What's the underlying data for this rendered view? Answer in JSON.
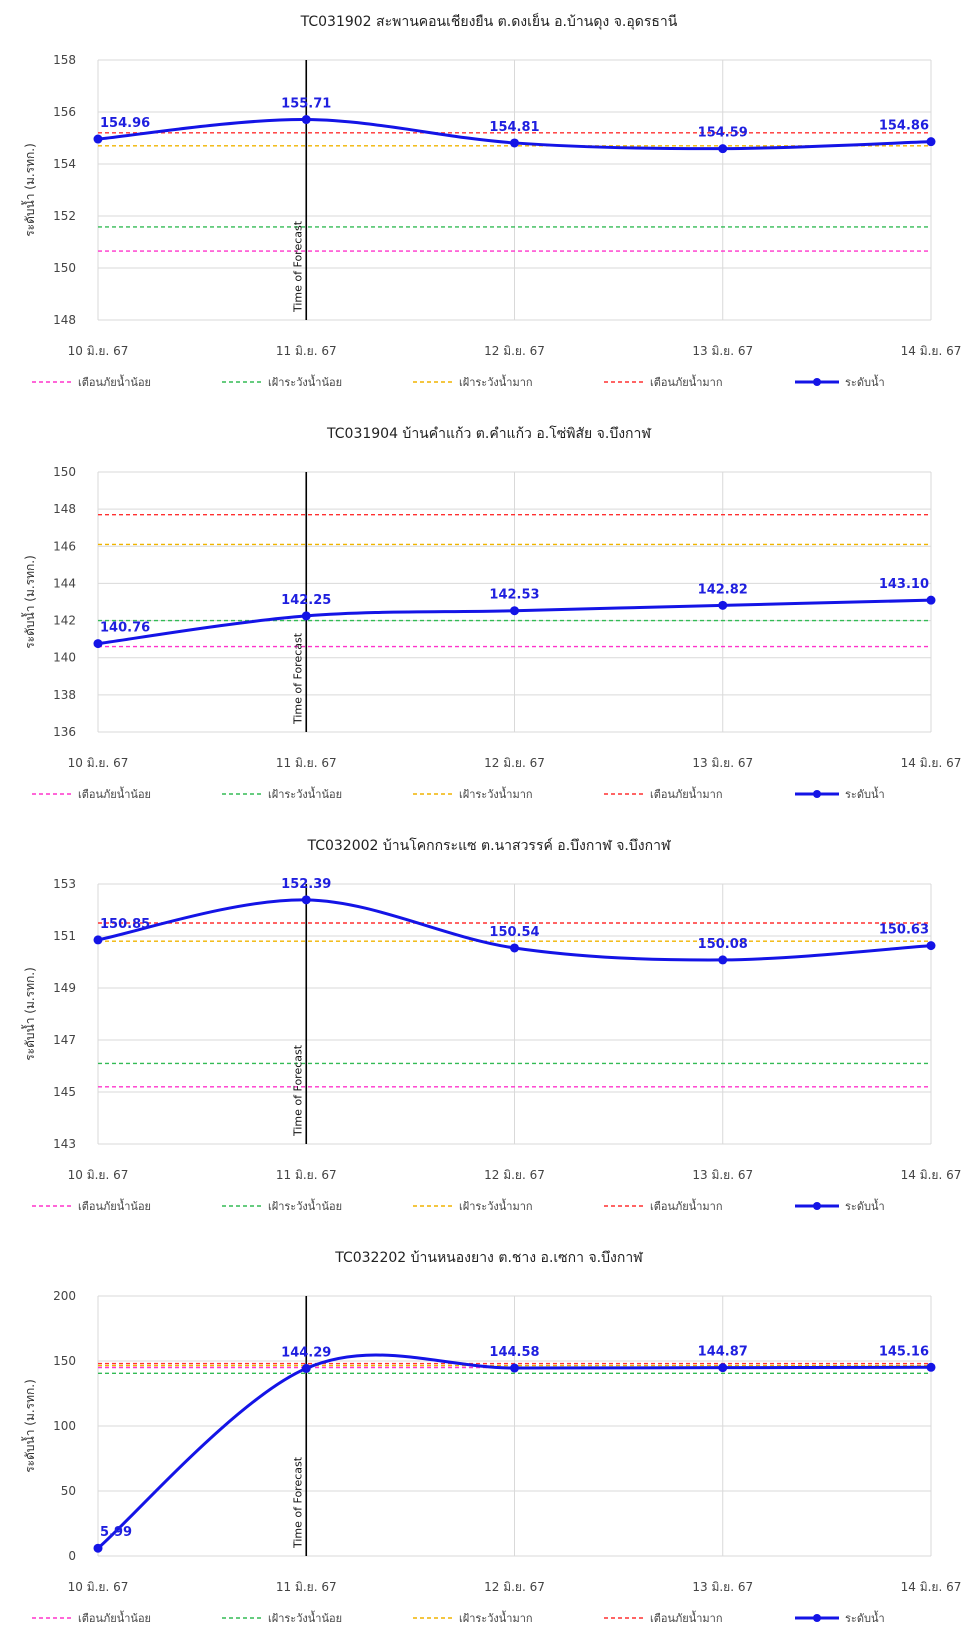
{
  "chart_data": [
    {
      "type": "line",
      "title": "TC031902 สะพานคอนเชียงยืน ต.ดงเย็น อ.บ้านดุง จ.อุดรธานี",
      "ylabel": "ระดับน้ำ (ม.รทก.)",
      "ylim": [
        148,
        158
      ],
      "yticks": [
        148,
        150,
        152,
        154,
        156,
        158
      ],
      "categories": [
        "10 มิ.ย. 67",
        "11 มิ.ย. 67",
        "12 มิ.ย. 67",
        "13 มิ.ย. 67",
        "14 มิ.ย. 67"
      ],
      "forecast_label": "Time of Forecast",
      "forecast_index": 1,
      "thresholds": [
        {
          "name": "เตือนภัยน้ำน้อย",
          "value": 150.65,
          "color": "#ff33cc"
        },
        {
          "name": "เฝ้าระวังน้ำน้อย",
          "value": 151.58,
          "color": "#33bb55"
        },
        {
          "name": "เฝ้าระวังน้ำมาก",
          "value": 154.7,
          "color": "#f0b400"
        },
        {
          "name": "เตือนภัยน้ำมาก",
          "value": 155.2,
          "color": "#ff3030"
        }
      ],
      "series": [
        {
          "name": "ระดับน้ำ",
          "color": "#1414e6",
          "values": [
            154.96,
            155.71,
            154.81,
            154.59,
            154.86
          ],
          "labels": [
            "154.96",
            "155.71",
            "154.81",
            "154.59",
            "154.86"
          ]
        }
      ]
    },
    {
      "type": "line",
      "title": "TC031904 บ้านคำแก้ว ต.คำแก้ว อ.โซ่พิสัย จ.บึงกาฬ",
      "ylabel": "ระดับน้ำ (ม.รทก.)",
      "ylim": [
        136,
        150
      ],
      "yticks": [
        136,
        138,
        140,
        142,
        144,
        146,
        148,
        150
      ],
      "categories": [
        "10 มิ.ย. 67",
        "11 มิ.ย. 67",
        "12 มิ.ย. 67",
        "13 มิ.ย. 67",
        "14 มิ.ย. 67"
      ],
      "forecast_label": "Time of Forecast",
      "forecast_index": 1,
      "thresholds": [
        {
          "name": "เตือนภัยน้ำน้อย",
          "value": 140.6,
          "color": "#ff33cc"
        },
        {
          "name": "เฝ้าระวังน้ำน้อย",
          "value": 142.0,
          "color": "#33bb55"
        },
        {
          "name": "เฝ้าระวังน้ำมาก",
          "value": 146.1,
          "color": "#f0b400"
        },
        {
          "name": "เตือนภัยน้ำมาก",
          "value": 147.7,
          "color": "#ff3030"
        }
      ],
      "series": [
        {
          "name": "ระดับน้ำ",
          "color": "#1414e6",
          "values": [
            140.76,
            142.25,
            142.53,
            142.82,
            143.1
          ],
          "labels": [
            "140.76",
            "142.25",
            "142.53",
            "142.82",
            "143.10"
          ]
        }
      ]
    },
    {
      "type": "line",
      "title": "TC032002 บ้านโคกกระแซ ต.นาสวรรค์ อ.บึงกาฬ จ.บึงกาฬ",
      "ylabel": "ระดับน้ำ (ม.รทก.)",
      "ylim": [
        143,
        153
      ],
      "yticks": [
        143,
        145,
        147,
        149,
        151,
        153
      ],
      "categories": [
        "10 มิ.ย. 67",
        "11 มิ.ย. 67",
        "12 มิ.ย. 67",
        "13 มิ.ย. 67",
        "14 มิ.ย. 67"
      ],
      "forecast_label": "Time of Forecast",
      "forecast_index": 1,
      "thresholds": [
        {
          "name": "เตือนภัยน้ำน้อย",
          "value": 145.2,
          "color": "#ff33cc"
        },
        {
          "name": "เฝ้าระวังน้ำน้อย",
          "value": 146.1,
          "color": "#33bb55"
        },
        {
          "name": "เฝ้าระวังน้ำมาก",
          "value": 150.8,
          "color": "#f0b400"
        },
        {
          "name": "เตือนภัยน้ำมาก",
          "value": 151.5,
          "color": "#ff3030"
        }
      ],
      "series": [
        {
          "name": "ระดับน้ำ",
          "color": "#1414e6",
          "values": [
            150.85,
            152.39,
            150.54,
            150.08,
            150.63
          ],
          "labels": [
            "150.85",
            "152.39",
            "150.54",
            "150.08",
            "150.63"
          ]
        }
      ]
    },
    {
      "type": "line",
      "title": "TC032202 บ้านหนองยาง ต.ชาง อ.เซกา จ.บึงกาฬ",
      "ylabel": "ระดับน้ำ (ม.รทก.)",
      "ylim": [
        0,
        200
      ],
      "yticks": [
        0,
        50,
        100,
        150,
        200
      ],
      "categories": [
        "10 มิ.ย. 67",
        "11 มิ.ย. 67",
        "12 มิ.ย. 67",
        "13 มิ.ย. 67",
        "14 มิ.ย. 67"
      ],
      "forecast_label": "Time of Forecast",
      "forecast_index": 1,
      "thresholds": [
        {
          "name": "เตือนภัยน้ำน้อย",
          "value": 145,
          "color": "#ff33cc"
        },
        {
          "name": "เฝ้าระวังน้ำน้อย",
          "value": 140.5,
          "color": "#33bb55"
        },
        {
          "name": "เฝ้าระวังน้ำมาก",
          "value": 146.5,
          "color": "#f0b400"
        },
        {
          "name": "เตือนภัยน้ำมาก",
          "value": 148,
          "color": "#ff3030"
        }
      ],
      "series": [
        {
          "name": "ระดับน้ำ",
          "color": "#1414e6",
          "values": [
            5.99,
            144.29,
            144.58,
            144.87,
            145.16
          ],
          "labels": [
            "5.99",
            "144.29",
            "144.58",
            "144.87",
            "145.16"
          ]
        }
      ]
    }
  ]
}
